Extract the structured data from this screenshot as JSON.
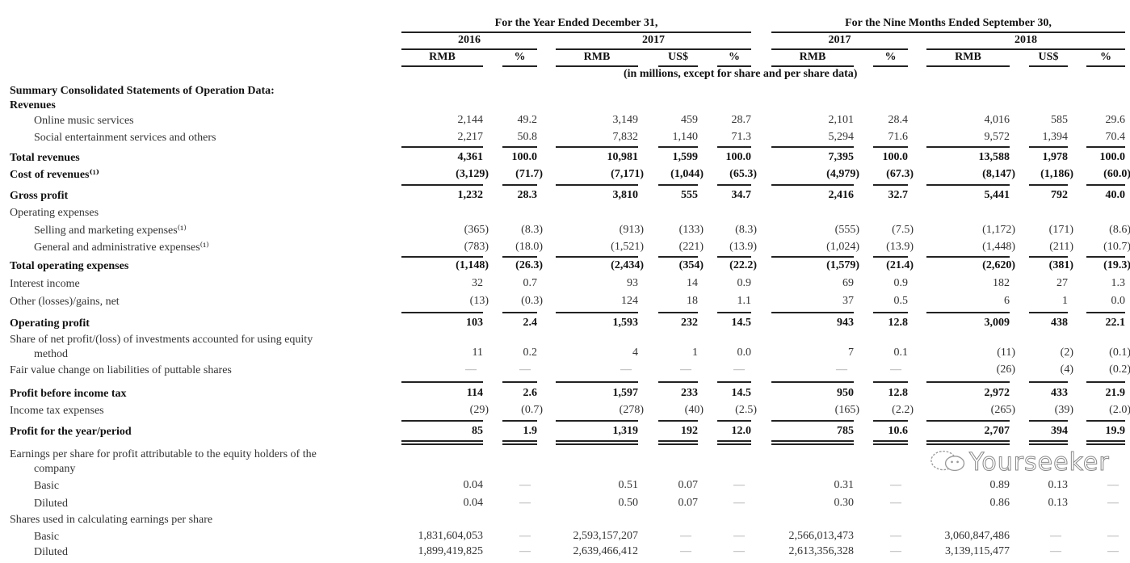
{
  "header": {
    "period_year": "For the Year Ended December 31,",
    "period_nine": "For the Nine Months Ended September 30,",
    "years": [
      "2016",
      "2017",
      "2017",
      "2018"
    ],
    "units": [
      "RMB",
      "%",
      "RMB",
      "US$",
      "%",
      "RMB",
      "%",
      "RMB",
      "US$",
      "%"
    ],
    "note": "(in millions, except for share and per share data)"
  },
  "rows": [
    {
      "label": "Summary Consolidated Statements of Operation Data:",
      "values": []
    },
    {
      "label": "Revenues",
      "values": []
    },
    {
      "label": "Online music services",
      "values": [
        "2,144",
        "49.2",
        "3,149",
        "459",
        "28.7",
        "2,101",
        "28.4",
        "4,016",
        "585",
        "29.6"
      ]
    },
    {
      "label": "Social entertainment services and others",
      "values": [
        "2,217",
        "50.8",
        "7,832",
        "1,140",
        "71.3",
        "5,294",
        "71.6",
        "9,572",
        "1,394",
        "70.4"
      ]
    },
    {
      "label": "Total revenues",
      "values": [
        "4,361",
        "100.0",
        "10,981",
        "1,599",
        "100.0",
        "7,395",
        "100.0",
        "13,588",
        "1,978",
        "100.0"
      ]
    },
    {
      "label": "Cost of revenues⁽¹⁾",
      "values": [
        "(3,129)",
        "(71.7)",
        "(7,171)",
        "(1,044)",
        "(65.3)",
        "(4,979)",
        "(67.3)",
        "(8,147)",
        "(1,186)",
        "(60.0)"
      ]
    },
    {
      "label": "Gross profit",
      "values": [
        "1,232",
        "28.3",
        "3,810",
        "555",
        "34.7",
        "2,416",
        "32.7",
        "5,441",
        "792",
        "40.0"
      ]
    },
    {
      "label": "Operating expenses",
      "values": []
    },
    {
      "label": "Selling and marketing expenses⁽¹⁾",
      "values": [
        "(365)",
        "(8.3)",
        "(913)",
        "(133)",
        "(8.3)",
        "(555)",
        "(7.5)",
        "(1,172)",
        "(171)",
        "(8.6)"
      ]
    },
    {
      "label": "General and administrative expenses⁽¹⁾",
      "values": [
        "(783)",
        "(18.0)",
        "(1,521)",
        "(221)",
        "(13.9)",
        "(1,024)",
        "(13.9)",
        "(1,448)",
        "(211)",
        "(10.7)"
      ]
    },
    {
      "label": "Total operating expenses",
      "values": [
        "(1,148)",
        "(26.3)",
        "(2,434)",
        "(354)",
        "(22.2)",
        "(1,579)",
        "(21.4)",
        "(2,620)",
        "(381)",
        "(19.3)"
      ]
    },
    {
      "label": "Interest income",
      "values": [
        "32",
        "0.7",
        "93",
        "14",
        "0.9",
        "69",
        "0.9",
        "182",
        "27",
        "1.3"
      ]
    },
    {
      "label": "Other (losses)/gains, net",
      "values": [
        "(13)",
        "(0.3)",
        "124",
        "18",
        "1.1",
        "37",
        "0.5",
        "6",
        "1",
        "0.0"
      ]
    },
    {
      "label": "Operating profit",
      "values": [
        "103",
        "2.4",
        "1,593",
        "232",
        "14.5",
        "943",
        "12.8",
        "3,009",
        "438",
        "22.1"
      ]
    },
    {
      "label": "Share of net profit/(loss) of investments accounted for using equity",
      "label2": "method",
      "values": [
        "11",
        "0.2",
        "4",
        "1",
        "0.0",
        "7",
        "0.1",
        "(11)",
        "(2)",
        "(0.1)"
      ]
    },
    {
      "label": "Fair value change on liabilities of puttable shares",
      "values": [
        "—",
        "—",
        "—",
        "—",
        "—",
        "—",
        "—",
        "(26)",
        "(4)",
        "(0.2)"
      ]
    },
    {
      "label": "Profit before income tax",
      "values": [
        "114",
        "2.6",
        "1,597",
        "233",
        "14.5",
        "950",
        "12.8",
        "2,972",
        "433",
        "21.9"
      ]
    },
    {
      "label": "Income tax expenses",
      "values": [
        "(29)",
        "(0.7)",
        "(278)",
        "(40)",
        "(2.5)",
        "(165)",
        "(2.2)",
        "(265)",
        "(39)",
        "(2.0)"
      ]
    },
    {
      "label": "Profit for the year/period",
      "values": [
        "85",
        "1.9",
        "1,319",
        "192",
        "12.0",
        "785",
        "10.6",
        "2,707",
        "394",
        "19.9"
      ]
    },
    {
      "label": "Earnings per share for profit attributable to the equity holders of the",
      "label2": "company",
      "values": []
    },
    {
      "label": "Basic",
      "values": [
        "0.04",
        "—",
        "0.51",
        "0.07",
        "—",
        "0.31",
        "—",
        "0.89",
        "0.13",
        "—"
      ]
    },
    {
      "label": "Diluted",
      "values": [
        "0.04",
        "—",
        "0.50",
        "0.07",
        "—",
        "0.30",
        "—",
        "0.86",
        "0.13",
        "—"
      ]
    },
    {
      "label": "Shares used in calculating earnings per share",
      "values": []
    },
    {
      "label": "Basic",
      "values": [
        "1,831,604,053",
        "—",
        "2,593,157,207",
        "—",
        "—",
        "2,566,013,473",
        "—",
        "3,060,847,486",
        "—",
        "—"
      ]
    },
    {
      "label": "Diluted",
      "values": [
        "1,899,419,825",
        "—",
        "2,639,466,412",
        "—",
        "—",
        "2,613,356,328",
        "—",
        "3,139,115,477",
        "—",
        "—"
      ]
    }
  ],
  "watermark": {
    "text": "Yourseeker",
    "icon": "wechat-icon"
  }
}
